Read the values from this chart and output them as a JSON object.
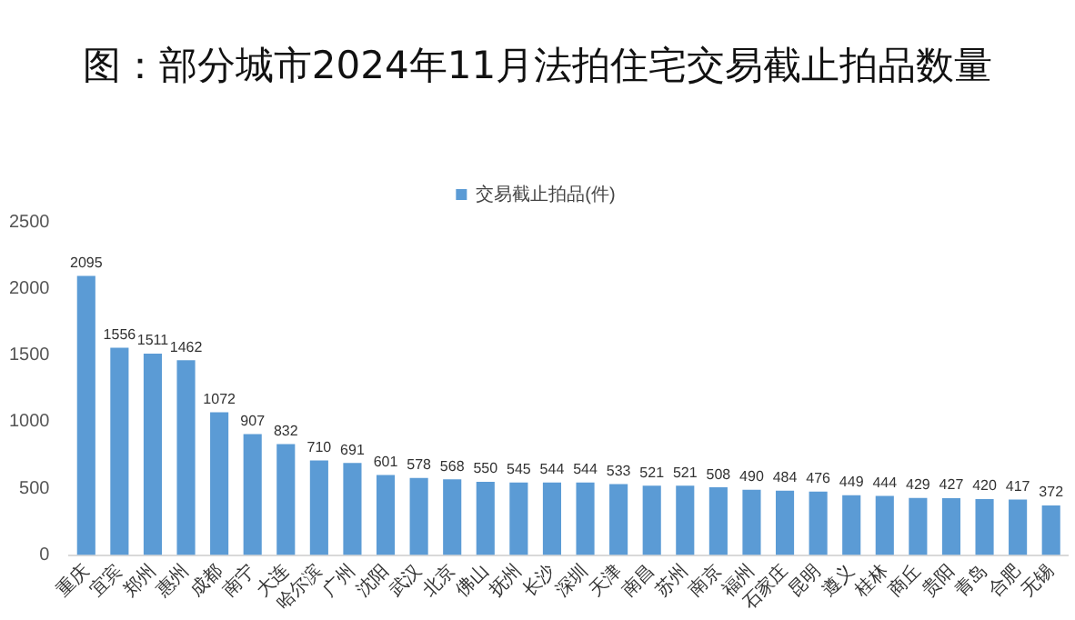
{
  "chart_data": {
    "type": "bar",
    "title": "图：部分城市2024年11月法拍住宅交易截止拍品数量",
    "categories": [
      "重庆",
      "宜宾",
      "郑州",
      "惠州",
      "成都",
      "南宁",
      "大连",
      "哈尔滨",
      "广州",
      "沈阳",
      "武汉",
      "北京",
      "佛山",
      "抚州",
      "长沙",
      "深圳",
      "天津",
      "南昌",
      "苏州",
      "南京",
      "福州",
      "石家庄",
      "昆明",
      "遵义",
      "桂林",
      "商丘",
      "贵阳",
      "青岛",
      "合肥",
      "无锡"
    ],
    "series": [
      {
        "name": "交易截止拍品(件)",
        "color": "#5b9bd5",
        "values": [
          2095,
          1556,
          1511,
          1462,
          1072,
          907,
          832,
          710,
          691,
          601,
          578,
          568,
          550,
          545,
          544,
          544,
          533,
          521,
          521,
          508,
          490,
          484,
          476,
          449,
          444,
          429,
          427,
          420,
          417,
          372
        ]
      }
    ],
    "ylim": [
      0,
      2500
    ],
    "yticks": [
      0,
      500,
      1000,
      1500,
      2000,
      2500
    ],
    "grid": false,
    "legend": "top",
    "data_labels": true
  }
}
